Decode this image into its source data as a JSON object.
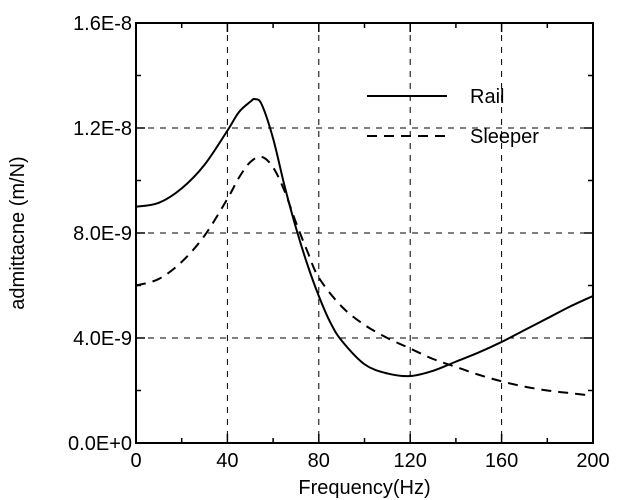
{
  "chart_data": {
    "type": "line",
    "xlabel": "Frequency(Hz)",
    "ylabel": "admittacne (m/N)",
    "xlim": [
      0,
      200
    ],
    "ylim": [
      0,
      1.6e-08
    ],
    "xticks": [
      0,
      40,
      80,
      120,
      160,
      200
    ],
    "xtick_labels": [
      "0",
      "40",
      "80",
      "120",
      "160",
      "200"
    ],
    "yticks": [
      0,
      4e-09,
      8e-09,
      1.2e-08,
      1.6e-08
    ],
    "ytick_labels": [
      "0.0E+0",
      "4.0E-9",
      "8.0E-9",
      "1.2E-8",
      "1.6E-8"
    ],
    "grid": true,
    "legend_position": "top-right",
    "series": [
      {
        "name": "Rail",
        "style": "solid",
        "x": [
          0,
          10,
          20,
          30,
          40,
          45,
          50,
          52,
          55,
          60,
          65,
          70,
          75,
          80,
          85,
          90,
          100,
          110,
          120,
          130,
          140,
          150,
          160,
          170,
          180,
          190,
          200
        ],
        "values": [
          9e-09,
          9.15e-09,
          9.7e-09,
          1.06e-08,
          1.19e-08,
          1.26e-08,
          1.3e-08,
          1.31e-08,
          1.29e-08,
          1.16e-08,
          9.8e-09,
          8.2e-09,
          6.8e-09,
          5.6e-09,
          4.6e-09,
          3.9e-09,
          3e-09,
          2.65e-09,
          2.55e-09,
          2.75e-09,
          3.1e-09,
          3.45e-09,
          3.85e-09,
          4.3e-09,
          4.75e-09,
          5.2e-09,
          5.6e-09
        ]
      },
      {
        "name": "Sleeper",
        "style": "dashed",
        "x": [
          0,
          10,
          20,
          30,
          40,
          45,
          50,
          55,
          60,
          65,
          70,
          75,
          80,
          90,
          100,
          110,
          120,
          130,
          140,
          150,
          160,
          170,
          180,
          190,
          200
        ],
        "values": [
          6e-09,
          6.25e-09,
          6.9e-09,
          7.9e-09,
          9.3e-09,
          1.01e-08,
          1.07e-08,
          1.09e-08,
          1.05e-08,
          9.6e-09,
          8.4e-09,
          7.3e-09,
          6.3e-09,
          5.2e-09,
          4.5e-09,
          4e-09,
          3.6e-09,
          3.2e-09,
          2.9e-09,
          2.6e-09,
          2.35e-09,
          2.15e-09,
          2e-09,
          1.9e-09,
          1.8e-09
        ]
      }
    ]
  }
}
